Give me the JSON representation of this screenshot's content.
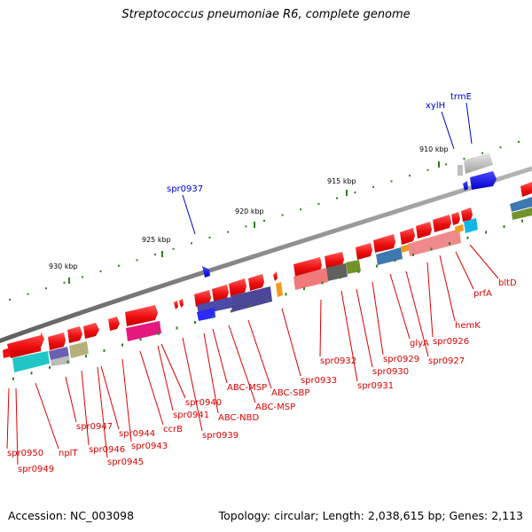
{
  "title": "Streptococcus pneumoniae R6, complete genome",
  "footer": {
    "accession": "Accession: NC_003098",
    "topology": "Topology: circular; Length: 2,038,615 bp; Genes: 2,113"
  },
  "scale_labels": [
    "910 kbp",
    "915 kbp",
    "920 kbp",
    "925 kbp",
    "930 kbp"
  ],
  "genes_red": [
    "spr0950",
    "spr0949",
    "nplT",
    "spr0947",
    "spr0946",
    "spr0945",
    "spr0944",
    "spr0943",
    "ccrB",
    "spr0941",
    "spr0940",
    "spr0939",
    "ABC-NBD",
    "ABC-MSP",
    "ABC-MSP",
    "ABC-SBP",
    "spr0933",
    "spr0932",
    "spr0931",
    "spr0930",
    "spr0929",
    "glyA",
    "spr0927",
    "spr0926",
    "hemK",
    "prfA",
    "bltD"
  ],
  "genes_blue": [
    "spr0937",
    "xylH",
    "trmE"
  ],
  "colors": {
    "background": "#ffffff",
    "red_label": "#dd0000",
    "blue_label": "#0000cc",
    "backbone": "#8a8a8a",
    "tick_green": "#2e7d20",
    "gene_red": "#ee1111",
    "gene_blue": "#1a1aee"
  }
}
